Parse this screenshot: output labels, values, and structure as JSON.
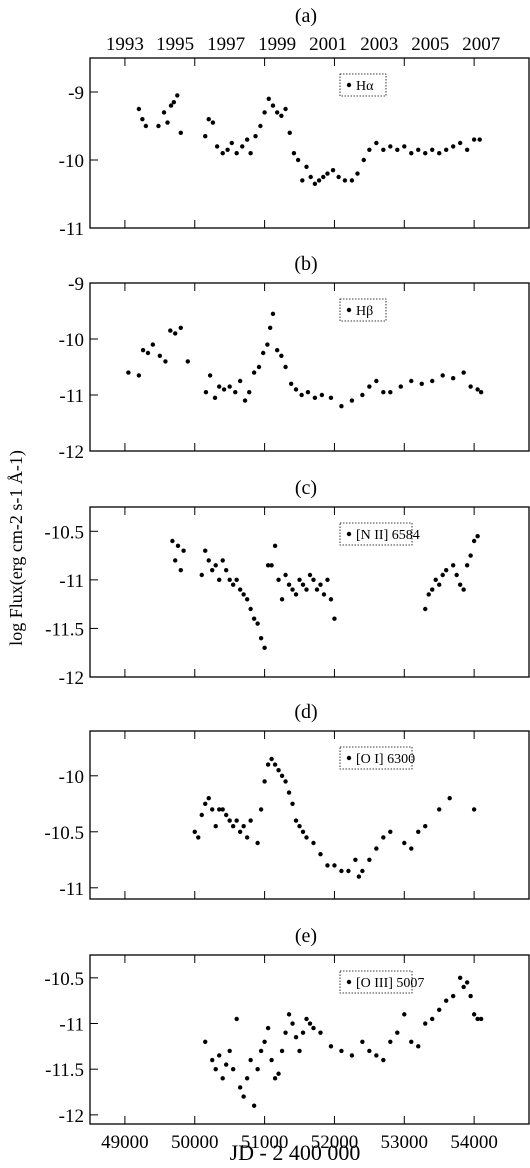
{
  "figure": {
    "ylabel": "log Flux(erg cm-2 s-1 Å-1)",
    "xlabel": "JD - 2 400 000"
  },
  "chart_data": [
    {
      "type": "scatter",
      "panel_label": "(a)",
      "legend": "Hα",
      "legend_placement": "top-right",
      "xlim": [
        48500,
        54800
      ],
      "ylim": [
        -11,
        -8.5
      ],
      "yticks": [
        -11,
        -10,
        -9
      ],
      "top_axis_years": [
        "1993",
        "1995",
        "1997",
        "1999",
        "2001",
        "2003",
        "2005",
        "2007"
      ],
      "top_axis_year_jd": [
        49000,
        49718,
        50449,
        51180,
        51910,
        52641,
        53371,
        54102
      ],
      "series": [
        {
          "x": [
            49200,
            49250,
            49300,
            49480,
            49560,
            49610,
            49660,
            49700,
            49750,
            49800,
            50150,
            50200,
            50260,
            50320,
            50400,
            50470,
            50530,
            50600,
            50680,
            50750,
            50800,
            50870,
            50940,
            51000,
            51060,
            51120,
            51180,
            51240,
            51300,
            51360,
            51420,
            51480,
            51540,
            51600,
            51660,
            51720,
            51780,
            51840,
            51900,
            51980,
            52060,
            52150,
            52250,
            52330,
            52420,
            52500,
            52600,
            52700,
            52800,
            52900,
            53000,
            53100,
            53200,
            53300,
            53400,
            53500,
            53600,
            53700,
            53800,
            53900,
            54000,
            54080
          ],
          "y": [
            -9.25,
            -9.4,
            -9.5,
            -9.5,
            -9.3,
            -9.45,
            -9.2,
            -9.15,
            -9.05,
            -9.6,
            -9.65,
            -9.4,
            -9.45,
            -9.8,
            -9.9,
            -9.85,
            -9.75,
            -9.9,
            -9.8,
            -9.7,
            -9.9,
            -9.65,
            -9.5,
            -9.3,
            -9.1,
            -9.2,
            -9.3,
            -9.35,
            -9.25,
            -9.6,
            -9.9,
            -10.0,
            -10.3,
            -10.1,
            -10.25,
            -10.35,
            -10.3,
            -10.25,
            -10.2,
            -10.15,
            -10.25,
            -10.3,
            -10.3,
            -10.2,
            -10.0,
            -9.85,
            -9.75,
            -9.85,
            -9.8,
            -9.85,
            -9.8,
            -9.9,
            -9.85,
            -9.9,
            -9.85,
            -9.9,
            -9.85,
            -9.8,
            -9.75,
            -9.85,
            -9.7,
            -9.7
          ]
        }
      ]
    },
    {
      "type": "scatter",
      "panel_label": "(b)",
      "legend": "Hβ",
      "legend_placement": "top-right",
      "xlim": [
        48500,
        54800
      ],
      "ylim": [
        -12,
        -9
      ],
      "yticks": [
        -12,
        -11,
        -10,
        -9
      ],
      "series": [
        {
          "x": [
            49050,
            49200,
            49260,
            49330,
            49400,
            49500,
            49580,
            49650,
            49720,
            49800,
            49900,
            50160,
            50220,
            50290,
            50350,
            50420,
            50500,
            50580,
            50650,
            50720,
            50780,
            50850,
            50920,
            50980,
            51040,
            51080,
            51120,
            51180,
            51240,
            51300,
            51380,
            51450,
            51530,
            51620,
            51720,
            51820,
            51950,
            52100,
            52250,
            52400,
            52500,
            52600,
            52700,
            52800,
            52950,
            53100,
            53250,
            53400,
            53550,
            53700,
            53850,
            53950,
            54050,
            54100
          ],
          "y": [
            -10.6,
            -10.65,
            -10.2,
            -10.25,
            -10.1,
            -10.3,
            -10.4,
            -9.85,
            -9.9,
            -9.8,
            -10.4,
            -10.95,
            -10.65,
            -11.05,
            -10.85,
            -10.9,
            -10.85,
            -10.95,
            -10.75,
            -11.1,
            -10.95,
            -10.6,
            -10.5,
            -10.25,
            -10.1,
            -9.8,
            -9.55,
            -10.2,
            -10.3,
            -10.5,
            -10.8,
            -10.9,
            -11.0,
            -10.95,
            -11.05,
            -11.0,
            -11.05,
            -11.2,
            -11.1,
            -11.0,
            -10.85,
            -10.75,
            -10.95,
            -10.95,
            -10.85,
            -10.75,
            -10.8,
            -10.75,
            -10.65,
            -10.7,
            -10.6,
            -10.85,
            -10.9,
            -10.95
          ]
        }
      ]
    },
    {
      "type": "scatter",
      "panel_label": "(c)",
      "legend": "[N II] 6584",
      "legend_placement": "top-right",
      "xlim": [
        48500,
        54800
      ],
      "ylim": [
        -12,
        -10.25
      ],
      "yticks": [
        -12,
        -11.5,
        -11,
        -10.5
      ],
      "series": [
        {
          "x": [
            49680,
            49720,
            49760,
            49800,
            49840,
            50100,
            50150,
            50200,
            50250,
            50300,
            50350,
            50400,
            50450,
            50500,
            50550,
            50600,
            50650,
            50700,
            50750,
            50800,
            50850,
            50900,
            50950,
            51000,
            51050,
            51100,
            51150,
            51200,
            51250,
            51300,
            51350,
            51400,
            51450,
            51500,
            51550,
            51600,
            51650,
            51700,
            51750,
            51800,
            51850,
            51900,
            51950,
            52000,
            53300,
            53350,
            53400,
            53450,
            53500,
            53550,
            53600,
            53700,
            53750,
            53800,
            53850,
            53900,
            53950,
            54000,
            54050
          ],
          "y": [
            -10.6,
            -10.8,
            -10.65,
            -10.9,
            -10.7,
            -10.95,
            -10.7,
            -10.8,
            -10.9,
            -10.85,
            -11.0,
            -10.8,
            -10.9,
            -11.0,
            -11.05,
            -11.0,
            -11.1,
            -11.15,
            -11.2,
            -11.3,
            -11.4,
            -11.45,
            -11.6,
            -11.7,
            -10.85,
            -10.85,
            -10.65,
            -11.0,
            -11.2,
            -10.95,
            -11.05,
            -11.1,
            -11.15,
            -11.0,
            -11.05,
            -11.1,
            -10.95,
            -11.0,
            -11.1,
            -11.05,
            -11.15,
            -11.0,
            -11.2,
            -11.4,
            -11.3,
            -11.15,
            -11.1,
            -11.0,
            -11.05,
            -10.95,
            -10.9,
            -10.85,
            -10.95,
            -11.05,
            -11.1,
            -10.85,
            -10.75,
            -10.6,
            -10.55
          ]
        }
      ]
    },
    {
      "type": "scatter",
      "panel_label": "(d)",
      "legend": "[O I] 6300",
      "legend_placement": "top-right",
      "xlim": [
        48500,
        54800
      ],
      "ylim": [
        -11.1,
        -9.6
      ],
      "yticks": [
        -11,
        -10.5,
        -10
      ],
      "series": [
        {
          "x": [
            50000,
            50050,
            50100,
            50150,
            50200,
            50250,
            50300,
            50350,
            50400,
            50450,
            50500,
            50550,
            50600,
            50650,
            50700,
            50750,
            50800,
            50900,
            50950,
            51000,
            51050,
            51100,
            51150,
            51200,
            51250,
            51300,
            51350,
            51400,
            51450,
            51500,
            51550,
            51600,
            51700,
            51800,
            51900,
            52000,
            52100,
            52200,
            52300,
            52350,
            52400,
            52500,
            52600,
            52700,
            52800,
            53000,
            53100,
            53200,
            53300,
            53500,
            53650,
            54000
          ],
          "y": [
            -10.5,
            -10.55,
            -10.35,
            -10.25,
            -10.2,
            -10.3,
            -10.45,
            -10.3,
            -10.3,
            -10.35,
            -10.4,
            -10.45,
            -10.4,
            -10.5,
            -10.45,
            -10.55,
            -10.4,
            -10.6,
            -10.3,
            -10.05,
            -9.9,
            -9.85,
            -9.9,
            -9.95,
            -10.0,
            -10.05,
            -10.15,
            -10.25,
            -10.4,
            -10.45,
            -10.5,
            -10.55,
            -10.6,
            -10.7,
            -10.8,
            -10.8,
            -10.85,
            -10.85,
            -10.75,
            -10.9,
            -10.85,
            -10.75,
            -10.65,
            -10.55,
            -10.5,
            -10.6,
            -10.65,
            -10.5,
            -10.45,
            -10.3,
            -10.2,
            -10.3
          ]
        }
      ]
    },
    {
      "type": "scatter",
      "panel_label": "(e)",
      "legend": "[O III] 5007",
      "legend_placement": "top-right",
      "xlim": [
        48500,
        54800
      ],
      "ylim": [
        -12.1,
        -10.25
      ],
      "yticks": [
        -12,
        -11.5,
        -11,
        -10.5
      ],
      "series": [
        {
          "x": [
            50150,
            50250,
            50300,
            50350,
            50400,
            50450,
            50500,
            50550,
            50600,
            50650,
            50700,
            50750,
            50800,
            50850,
            50900,
            50950,
            51000,
            51050,
            51100,
            51150,
            51200,
            51250,
            51300,
            51350,
            51400,
            51450,
            51500,
            51550,
            51600,
            51650,
            51700,
            51800,
            51950,
            52100,
            52250,
            52400,
            52500,
            52600,
            52700,
            52800,
            52900,
            53000,
            53100,
            53200,
            53300,
            53400,
            53500,
            53600,
            53700,
            53800,
            53850,
            53900,
            53950,
            54000,
            54050,
            54100
          ],
          "y": [
            -11.2,
            -11.4,
            -11.5,
            -11.35,
            -11.6,
            -11.45,
            -11.3,
            -11.5,
            -10.95,
            -11.7,
            -11.8,
            -11.6,
            -11.4,
            -11.9,
            -11.5,
            -11.3,
            -11.2,
            -11.05,
            -11.4,
            -11.6,
            -11.55,
            -11.3,
            -11.1,
            -10.9,
            -11.0,
            -11.15,
            -11.3,
            -11.1,
            -10.95,
            -11.0,
            -11.05,
            -11.1,
            -11.25,
            -11.3,
            -11.35,
            -11.2,
            -11.3,
            -11.35,
            -11.4,
            -11.2,
            -11.1,
            -10.9,
            -11.2,
            -11.25,
            -11.0,
            -10.95,
            -10.85,
            -10.75,
            -10.7,
            -10.5,
            -10.6,
            -10.55,
            -10.7,
            -10.9,
            -10.95,
            -10.95
          ]
        }
      ]
    }
  ],
  "shared_xticks": [
    49000,
    50000,
    51000,
    52000,
    53000,
    54000
  ]
}
